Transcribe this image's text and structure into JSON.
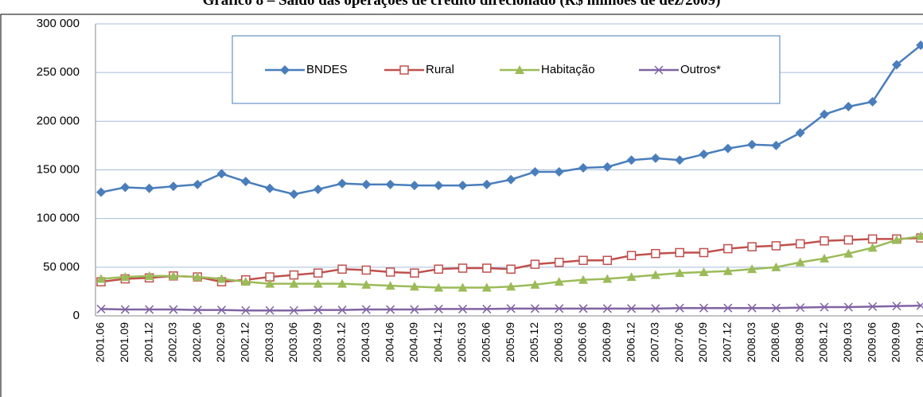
{
  "chart_data": {
    "type": "line",
    "title": "Gráfico 8 – Saldo das operações de crédito direcionado (R$ milhões de dez/2009)",
    "categories": [
      "2001.06",
      "2001.09",
      "2001.12",
      "2002.03",
      "2002.06",
      "2002.09",
      "2002.12",
      "2003.03",
      "2003.06",
      "2003.09",
      "2003.12",
      "2004.03",
      "2004.06",
      "2004.09",
      "2004.12",
      "2005.03",
      "2005.06",
      "2005.09",
      "2005.12",
      "2006.03",
      "2006.06",
      "2006.09",
      "2006.12",
      "2007.03",
      "2007.06",
      "2007.09",
      "2007.12",
      "2008.03",
      "2008.06",
      "2008.09",
      "2008.12",
      "2009.03",
      "2009.06",
      "2009.09",
      "2009.12"
    ],
    "series": [
      {
        "name": "BNDES",
        "color": "#4a7ebb",
        "marker": "diamond",
        "values": [
          127000,
          132000,
          131000,
          133000,
          135000,
          146000,
          138000,
          131000,
          125000,
          130000,
          136000,
          135000,
          135000,
          134000,
          134000,
          134000,
          135000,
          140000,
          148000,
          148000,
          152000,
          153000,
          160000,
          162000,
          160000,
          166000,
          172000,
          176000,
          175000,
          188000,
          207000,
          215000,
          220000,
          258000,
          278000
        ]
      },
      {
        "name": "Rural",
        "color": "#c0504d",
        "marker": "square",
        "values": [
          35000,
          38000,
          39000,
          41000,
          40000,
          35000,
          37000,
          40000,
          42000,
          44000,
          48000,
          47000,
          45000,
          44000,
          48000,
          49000,
          49000,
          48000,
          53000,
          55000,
          57000,
          57000,
          62000,
          64000,
          65000,
          65000,
          69000,
          71000,
          72000,
          74000,
          77000,
          78000,
          79000,
          79000,
          80000
        ]
      },
      {
        "name": "Habitação",
        "color": "#9bbb59",
        "marker": "triangle",
        "values": [
          38000,
          40000,
          41000,
          41000,
          40000,
          38000,
          35000,
          33000,
          33000,
          33000,
          33000,
          32000,
          31000,
          30000,
          29000,
          29000,
          29000,
          30000,
          32000,
          35000,
          37000,
          38000,
          40000,
          42000,
          44000,
          45000,
          46000,
          48000,
          50000,
          55000,
          59000,
          64000,
          70000,
          78000,
          82000
        ]
      },
      {
        "name": "Outros*",
        "color": "#8064a2",
        "marker": "x",
        "values": [
          7000,
          6500,
          6500,
          6500,
          6000,
          6000,
          5500,
          5500,
          5500,
          6000,
          6000,
          6500,
          6500,
          6500,
          7000,
          7000,
          7000,
          7500,
          7500,
          7500,
          7500,
          7500,
          7500,
          7500,
          8000,
          8000,
          8000,
          8000,
          8000,
          8500,
          9000,
          9000,
          9500,
          10000,
          10500
        ]
      }
    ],
    "ylim": [
      0,
      300000
    ],
    "yticks": [
      0,
      {
        "value": 50000,
        "label": "50 000"
      },
      {
        "value": 100000,
        "label": "100 000"
      },
      {
        "value": 150000,
        "label": "150 000"
      },
      {
        "value": 200000,
        "label": "200 000"
      },
      {
        "value": 250000,
        "label": "250 000"
      },
      {
        "value": 300000,
        "label": "300 000"
      }
    ],
    "grid": true,
    "legend": "top"
  }
}
